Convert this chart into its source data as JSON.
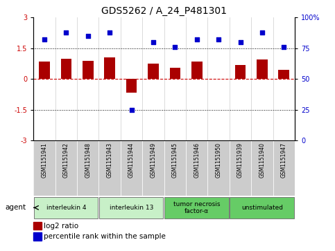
{
  "title": "GDS5262 / A_24_P481301",
  "samples": [
    "GSM1151941",
    "GSM1151942",
    "GSM1151948",
    "GSM1151943",
    "GSM1151944",
    "GSM1151949",
    "GSM1151945",
    "GSM1151946",
    "GSM1151950",
    "GSM1151939",
    "GSM1151940",
    "GSM1151947"
  ],
  "log2_ratio": [
    0.85,
    1.0,
    0.9,
    1.05,
    -0.65,
    0.75,
    0.55,
    0.85,
    0.0,
    0.7,
    0.95,
    0.45
  ],
  "percentile": [
    82,
    88,
    85,
    88,
    25,
    80,
    76,
    82,
    82,
    80,
    88,
    76
  ],
  "groups": [
    {
      "label": "interleukin 4",
      "start": 0,
      "end": 3,
      "color": "#c8f0c8"
    },
    {
      "label": "interleukin 13",
      "start": 3,
      "end": 6,
      "color": "#c8f0c8"
    },
    {
      "label": "tumor necrosis\nfactor-α",
      "start": 6,
      "end": 9,
      "color": "#66cc66"
    },
    {
      "label": "unstimulated",
      "start": 9,
      "end": 12,
      "color": "#66cc66"
    }
  ],
  "bar_color": "#aa0000",
  "scatter_color": "#0000cc",
  "ylim_left": [
    -3,
    3
  ],
  "ylim_right": [
    0,
    100
  ],
  "yticks_left": [
    -3,
    -1.5,
    0,
    1.5,
    3
  ],
  "yticks_right": [
    0,
    25,
    50,
    75,
    100
  ],
  "agent_label": "agent",
  "legend_bar_label": "log2 ratio",
  "legend_scatter_label": "percentile rank within the sample",
  "background_color": "#ffffff",
  "plot_bg_color": "#ffffff",
  "tick_label_color_left": "#cc0000",
  "tick_label_color_right": "#0000cc",
  "title_fontsize": 10,
  "bar_width": 0.5,
  "sample_bg_color": "#cccccc",
  "cell_border_color": "#aaaaaa"
}
